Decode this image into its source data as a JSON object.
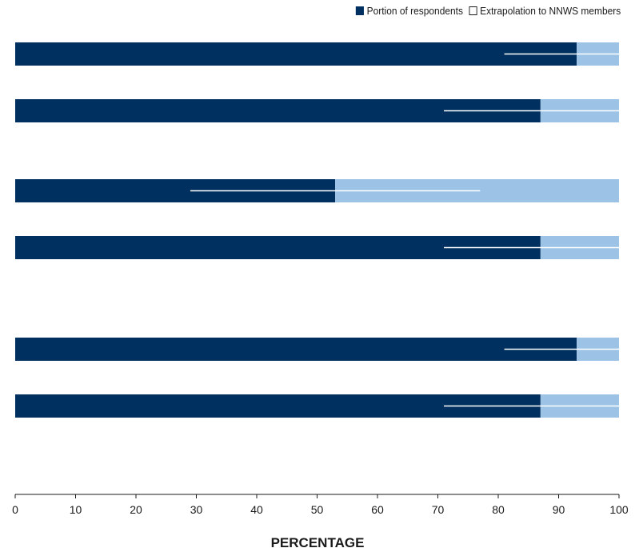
{
  "colors": {
    "portion": "#00305f",
    "extrapolation": "#9cc3e6",
    "range_line": "#ffffff",
    "axis": "#1a1a1a"
  },
  "chart_data": {
    "type": "bar",
    "orientation": "horizontal",
    "stacked": true,
    "title": "",
    "xlabel": "PERCENTAGE",
    "ylabel": "",
    "xlim": [
      0,
      100
    ],
    "xticks": [
      0,
      10,
      20,
      30,
      40,
      50,
      60,
      70,
      80,
      90,
      100
    ],
    "grid": false,
    "legend_position": "top-right",
    "categories": [
      "",
      "",
      "",
      "",
      "",
      ""
    ],
    "series": [
      {
        "name": "Portion of respondents",
        "values": [
          93,
          87,
          53,
          87,
          93,
          87
        ]
      },
      {
        "name": "Extrapolation to NNWS members",
        "values": [
          7,
          13,
          47,
          13,
          7,
          13
        ]
      }
    ],
    "ranges": [
      {
        "low": 81,
        "high": 100
      },
      {
        "low": 71,
        "high": 100
      },
      {
        "low": 29,
        "high": 77
      },
      {
        "low": 71,
        "high": 100
      },
      {
        "low": 81,
        "high": 100
      },
      {
        "low": 71,
        "high": 100
      }
    ]
  }
}
